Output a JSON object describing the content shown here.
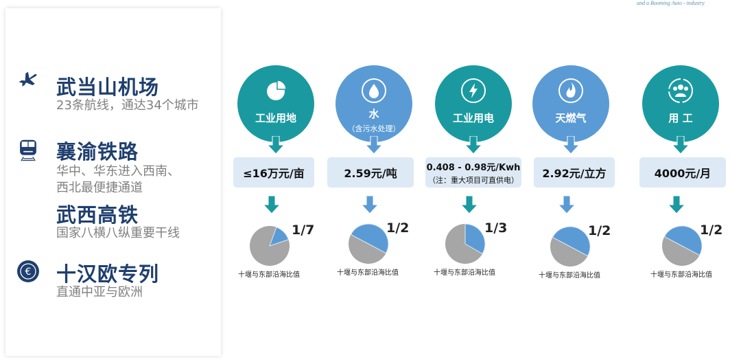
{
  "header": {
    "tagline": "and a Booming Auto - industry"
  },
  "colors": {
    "teal": "#1a9aa0",
    "blue": "#5b9bd5",
    "box": "#dde9f5",
    "navy": "#1f3f6e",
    "pie_gray": "#a6a6a6",
    "pie_blue": "#5b9bd5"
  },
  "transport": [
    {
      "icon": "airplane-icon",
      "title": "武当山机场",
      "desc": [
        "23条航线，通达34个城市"
      ]
    },
    {
      "icon": "train-icon",
      "title": "襄渝铁路",
      "desc": [
        "华中、华东进入西南、",
        "西北最便捷通道"
      ]
    },
    {
      "icon": "",
      "title": "武西高铁",
      "desc": [
        "国家八横八纵重要干线"
      ]
    },
    {
      "icon": "euro-icon",
      "title": "十汉欧专列",
      "desc": [
        "直通中亚与欧洲"
      ]
    }
  ],
  "costs": [
    {
      "icon": "pie-chart-icon",
      "label": "工业用地",
      "sub": "",
      "color": "teal",
      "value": "≤16万元/亩",
      "note": "",
      "ratio": "1/7",
      "fraction": 0.142857,
      "caption": "十堰与东部沿海比值"
    },
    {
      "icon": "water-drops-icon",
      "label": "水",
      "sub": "（含污水处理）",
      "color": "blue",
      "value": "2.59元/吨",
      "note": "",
      "ratio": "1/2",
      "fraction": 0.5,
      "caption": "十堰与东部沿海比值"
    },
    {
      "icon": "lightning-icon",
      "label": "工业用电",
      "sub": "",
      "color": "teal",
      "value": "0.408 - 0.98元/Kwh",
      "note": "（注：重大项目可直供电）",
      "ratio": "1/3",
      "fraction": 0.3333,
      "caption": "十堰与东部沿海比值"
    },
    {
      "icon": "flame-icon",
      "label": "天燃气",
      "sub": "",
      "color": "blue",
      "value": "2.92元/立方",
      "note": "",
      "ratio": "1/2",
      "fraction": 0.5,
      "caption": "十堰与东部沿海比值"
    },
    {
      "icon": "people-icon",
      "label": "用 工",
      "sub": "",
      "color": "teal",
      "value": "4000元/月",
      "note": "",
      "ratio": "1/2",
      "fraction": 0.5,
      "caption": "十堰与东部沿海比值"
    }
  ]
}
